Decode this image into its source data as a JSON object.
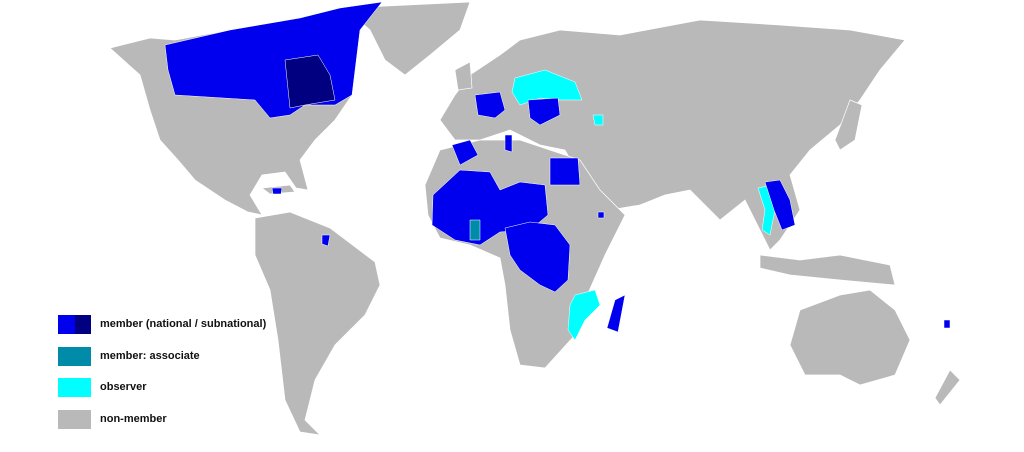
{
  "colors": {
    "member_national": "#0000ee",
    "member_subnational": "#000080",
    "member_associate": "#008ba8",
    "observer": "#00ffff",
    "non_member": "#b9b9b9",
    "border": "#ffffff"
  },
  "legend": [
    {
      "label": "member (national / subnational)",
      "colors": [
        "#0000ee",
        "#000080"
      ]
    },
    {
      "label": "member: associate",
      "colors": [
        "#008ba8"
      ]
    },
    {
      "label": "observer",
      "colors": [
        "#00ffff"
      ]
    },
    {
      "label": "non-member",
      "colors": [
        "#b9b9b9"
      ]
    }
  ]
}
